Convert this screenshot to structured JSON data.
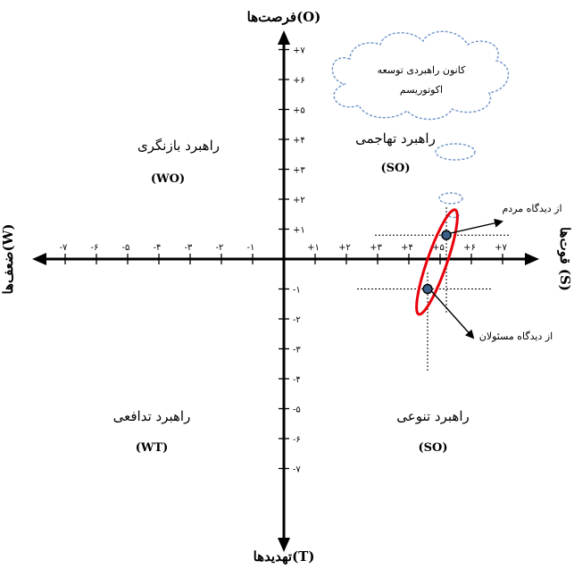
{
  "axes": {
    "top_label": "فرصت‌ها(O)",
    "bottom_label": "تهدیدها(T)",
    "left_label": "ضعف‌ها(W)",
    "right_label": "قوت‌ها (S)",
    "x_ticks_right": [
      "+۱",
      "+۲",
      "+۳",
      "+۴",
      "+۵",
      "+۶",
      "+۷"
    ],
    "x_ticks_left": [
      "-۱",
      "-۲",
      "-۳",
      "-۴",
      "-۵",
      "-۶",
      "-۷"
    ],
    "y_ticks_up": [
      "+۱",
      "+۲",
      "+۳",
      "+۴",
      "+۵",
      "+۶",
      "+۷"
    ],
    "y_ticks_down": [
      "-۱",
      "-۲",
      "-۳",
      "-۴",
      "-۵",
      "-۶",
      "-۷"
    ]
  },
  "quadrants": {
    "wo": {
      "title": "راهبرد بازنگری",
      "code": "(WO)"
    },
    "so_top": {
      "title": "راهبرد تهاجمی",
      "code": "(SO)"
    },
    "wt": {
      "title": "راهبرد تدافعی",
      "code": "(WT)"
    },
    "so_bottom": {
      "title": "راهبرد تنوعی",
      "code": "(SO)"
    }
  },
  "cloud": {
    "line1": "کانون راهبردی توسعه",
    "line2": "اکوتوریسم"
  },
  "points": {
    "people": {
      "label": "از دیدگاه مردم",
      "x": 5.2,
      "y": 0.8
    },
    "officials": {
      "label": "از دیدگاه مسئولان",
      "x": 4.6,
      "y": -1.0
    }
  },
  "colors": {
    "ellipse": "#e8000b",
    "point_fill": "#3a5f8a",
    "cloud_stroke": "#6f93c9"
  }
}
